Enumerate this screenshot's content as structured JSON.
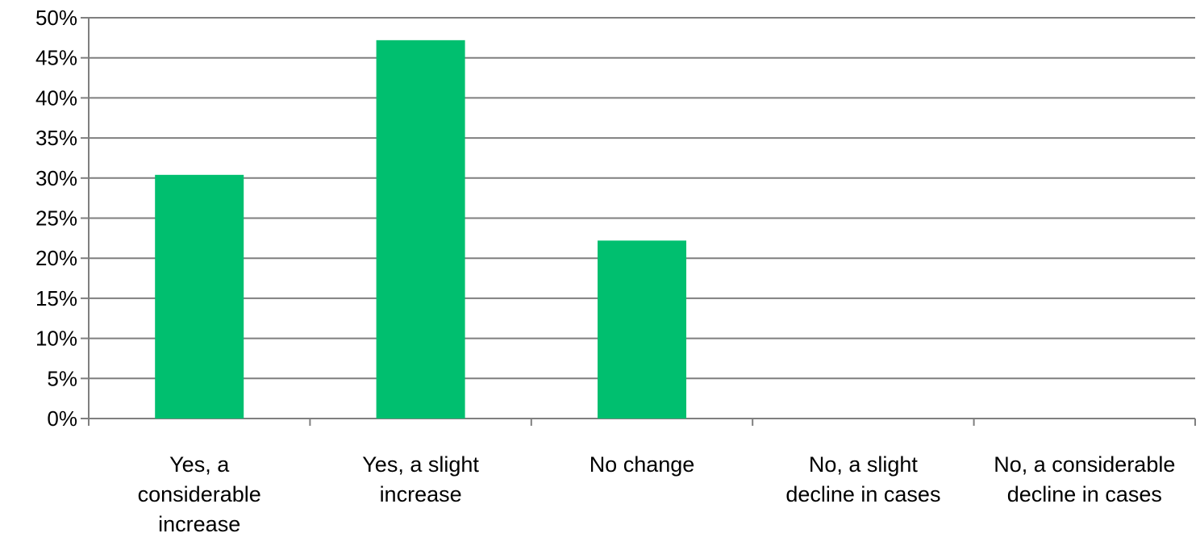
{
  "chart_data": {
    "type": "bar",
    "categories": [
      [
        "Yes, a",
        "considerable",
        "increase"
      ],
      [
        "Yes, a slight",
        "increase"
      ],
      [
        "No change"
      ],
      [
        "No, a slight",
        "decline in cases"
      ],
      [
        "No, a considerable",
        "decline in cases"
      ]
    ],
    "values": [
      30.4,
      47.2,
      22.2,
      0,
      0
    ],
    "ylim": [
      0,
      50
    ],
    "ytick_step": 5,
    "ytick_format": "percent",
    "grid": true,
    "legend": "none",
    "title": "",
    "xlabel": "",
    "ylabel": "",
    "bar_color": "#00BF6F",
    "grid_color": "#7F7F7F"
  }
}
